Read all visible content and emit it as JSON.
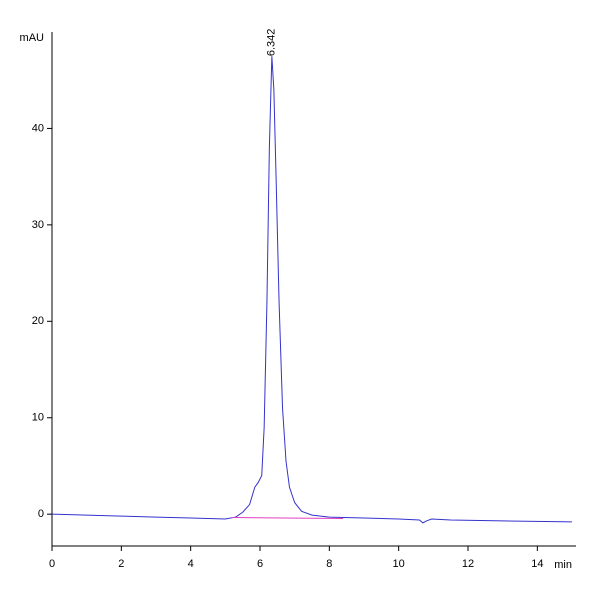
{
  "chart_data": {
    "type": "line",
    "xlabel": "min",
    "ylabel": "mAU",
    "xlim": [
      0,
      15
    ],
    "ylim": [
      -3.3,
      50
    ],
    "xticks": [
      0,
      2,
      4,
      6,
      8,
      10,
      12,
      14
    ],
    "yticks": [
      0,
      10,
      20,
      30,
      40
    ],
    "grid": false,
    "series": [
      {
        "color": "#3333cc",
        "x": [
          0,
          1,
          2,
          3,
          4,
          5,
          5.3,
          5.5,
          5.7,
          5.85,
          5.95,
          6.05,
          6.12,
          6.2,
          6.27,
          6.342,
          6.4,
          6.47,
          6.55,
          6.65,
          6.75,
          6.85,
          7.0,
          7.2,
          7.5,
          8,
          9,
          10,
          10.6,
          10.7,
          10.8,
          10.95,
          11.5,
          13,
          15
        ],
        "values": [
          0,
          -0.1,
          -0.2,
          -0.3,
          -0.4,
          -0.5,
          -0.3,
          0.2,
          1.0,
          2.8,
          3.3,
          4.0,
          9,
          22,
          38,
          47.5,
          44,
          34,
          22,
          11,
          5.5,
          2.8,
          1.2,
          0.3,
          -0.1,
          -0.3,
          -0.4,
          -0.5,
          -0.6,
          -0.9,
          -0.7,
          -0.5,
          -0.6,
          -0.7,
          -0.8
        ]
      },
      {
        "color": "#e040c0",
        "x": [
          5.2,
          8.4
        ],
        "values": [
          -0.35,
          -0.45
        ]
      }
    ],
    "annotations": [
      {
        "x": 6.342,
        "y": 47.5,
        "text": "6.342"
      }
    ]
  }
}
